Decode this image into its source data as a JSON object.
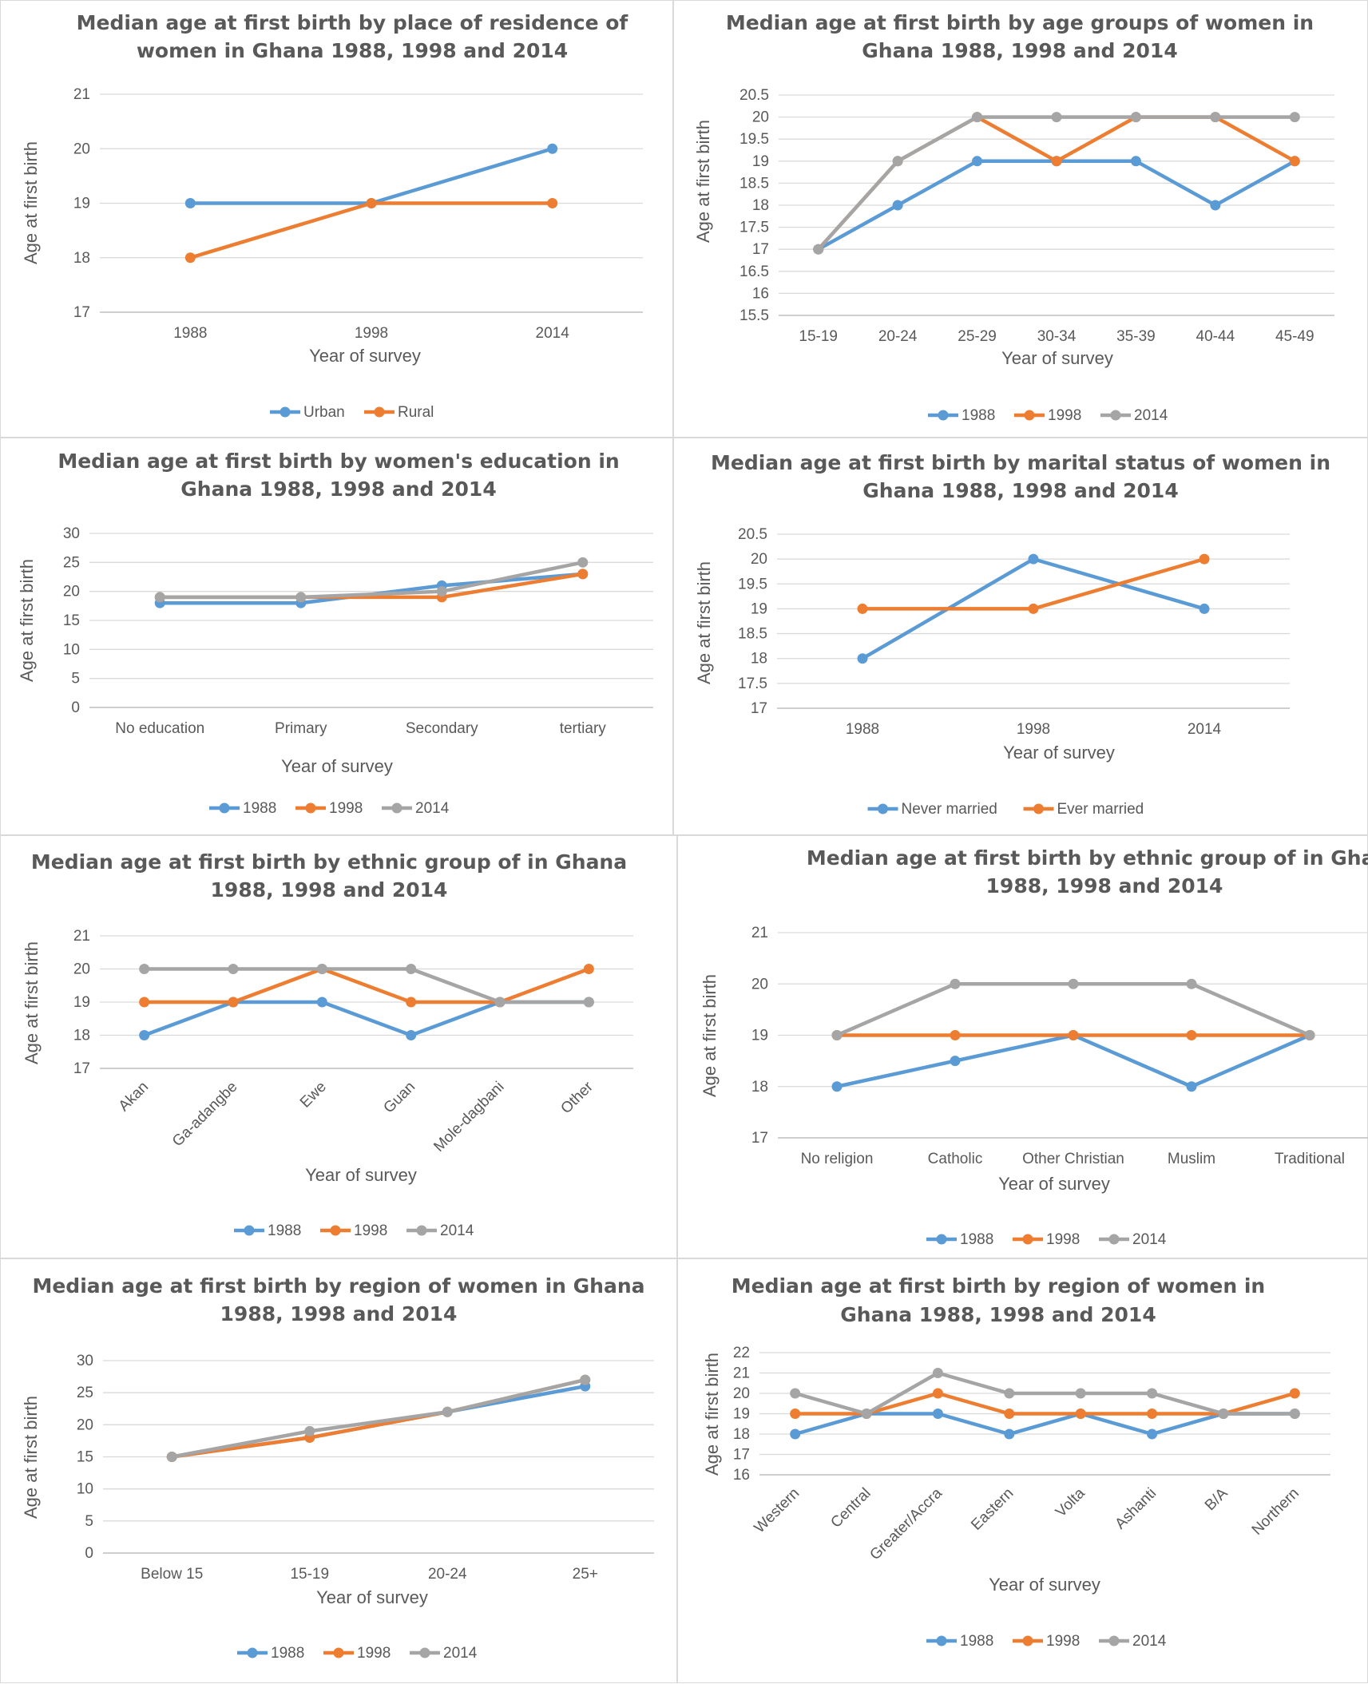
{
  "chart_data": [
    {
      "type": "line",
      "title_lines": [
        "Median age at first birth by place of residence of",
        "women in Ghana 1988, 1998 and 2014"
      ],
      "xlabel": "Year of survey",
      "ylabel": "Age at first birth",
      "categories": [
        "1988",
        "1998",
        "2014"
      ],
      "ylim": [
        17,
        21
      ],
      "yticks": [
        "17",
        "18",
        "19",
        "20",
        "21"
      ],
      "grid": true,
      "legend_position": "bottom",
      "series": [
        {
          "name": "Urban",
          "color": "#5B9BD5",
          "values": [
            19,
            19,
            20
          ]
        },
        {
          "name": "Rural",
          "color": "#ED7D31",
          "values": [
            18,
            19,
            19
          ]
        }
      ]
    },
    {
      "type": "line",
      "title_lines": [
        "Median age at first birth by age groups of women in",
        "Ghana 1988, 1998 and 2014"
      ],
      "xlabel": "Year of survey",
      "ylabel": "Age at first birth",
      "categories": [
        "15-19",
        "20-24",
        "25-29",
        "30-34",
        "35-39",
        "40-44",
        "45-49"
      ],
      "ylim": [
        15.5,
        20.5
      ],
      "yticks": [
        "15.5",
        "16",
        "16.5",
        "17",
        "17.5",
        "18",
        "18.5",
        "19",
        "19.5",
        "20",
        "20.5"
      ],
      "grid": true,
      "legend_position": "bottom",
      "series": [
        {
          "name": "1988",
          "color": "#5B9BD5",
          "values": [
            17,
            18,
            19,
            19,
            19,
            18,
            19
          ]
        },
        {
          "name": "1998",
          "color": "#ED7D31",
          "values": [
            17,
            19,
            20,
            19,
            20,
            20,
            19
          ]
        },
        {
          "name": "2014",
          "color": "#A5A5A5",
          "values": [
            17,
            19,
            20,
            20,
            20,
            20,
            20
          ]
        }
      ]
    },
    {
      "type": "line",
      "title_lines": [
        "Median age at first birth by women's education in",
        "Ghana 1988, 1998 and 2014"
      ],
      "xlabel": "Year of survey",
      "ylabel": "Age at first birth",
      "categories": [
        "No education",
        "Primary",
        "Secondary",
        "tertiary"
      ],
      "ylim": [
        0,
        30
      ],
      "yticks": [
        "0",
        "5",
        "10",
        "15",
        "20",
        "25",
        "30"
      ],
      "grid": true,
      "legend_position": "bottom",
      "series": [
        {
          "name": "1988",
          "color": "#5B9BD5",
          "values": [
            18,
            18,
            21,
            23
          ]
        },
        {
          "name": "1998",
          "color": "#ED7D31",
          "values": [
            19,
            19,
            19,
            23
          ]
        },
        {
          "name": "2014",
          "color": "#A5A5A5",
          "values": [
            19,
            19,
            20,
            25
          ]
        }
      ]
    },
    {
      "type": "line",
      "title_lines": [
        "Median age at first birth by marital status of women in",
        "Ghana 1988, 1998 and 2014"
      ],
      "xlabel": "Year of survey",
      "ylabel": "Age at first birth",
      "categories": [
        "1988",
        "1998",
        "2014"
      ],
      "ylim": [
        17,
        20.5
      ],
      "yticks": [
        "17",
        "17.5",
        "18",
        "18.5",
        "19",
        "19.5",
        "20",
        "20.5"
      ],
      "grid": true,
      "legend_position": "bottom",
      "series": [
        {
          "name": "Never married",
          "color": "#5B9BD5",
          "values": [
            18,
            20,
            19
          ]
        },
        {
          "name": "Ever married",
          "color": "#ED7D31",
          "values": [
            19,
            19,
            20
          ]
        }
      ]
    },
    {
      "type": "line",
      "title_lines": [
        "Median age at first birth by ethnic group of in Ghana",
        "1988, 1998 and 2014"
      ],
      "xlabel": "Year of survey",
      "ylabel": "Age at first birth",
      "categories": [
        "Akan",
        "Ga-adangbe",
        "Ewe",
        "Guan",
        "Mole-dagbani",
        "Other"
      ],
      "ylim": [
        17,
        21
      ],
      "yticks": [
        "17",
        "18",
        "19",
        "20",
        "21"
      ],
      "grid": true,
      "legend_position": "bottom",
      "series": [
        {
          "name": "1988",
          "color": "#5B9BD5",
          "values": [
            18,
            19,
            19,
            18,
            19,
            19
          ]
        },
        {
          "name": "1998",
          "color": "#ED7D31",
          "values": [
            19,
            19,
            20,
            19,
            19,
            20
          ]
        },
        {
          "name": "2014",
          "color": "#A5A5A5",
          "values": [
            20,
            20,
            20,
            20,
            19,
            19
          ]
        }
      ]
    },
    {
      "type": "line",
      "title_lines": [
        "Median age at first birth by ethnic group of in Ghana",
        "1988, 1998 and 2014"
      ],
      "xlabel": "Year of survey",
      "ylabel": "Age at first birth",
      "categories": [
        "No religion",
        "Catholic",
        "Other Christian",
        "Muslim",
        "Traditional"
      ],
      "ylim": [
        17,
        21
      ],
      "yticks": [
        "17",
        "18",
        "19",
        "20",
        "21"
      ],
      "grid": true,
      "legend_position": "bottom",
      "series": [
        {
          "name": "1988",
          "color": "#5B9BD5",
          "values": [
            18,
            18.5,
            19,
            18,
            19
          ]
        },
        {
          "name": "1998",
          "color": "#ED7D31",
          "values": [
            19,
            19,
            19,
            19,
            19
          ]
        },
        {
          "name": "2014",
          "color": "#A5A5A5",
          "values": [
            19,
            20,
            20,
            20,
            19
          ]
        }
      ]
    },
    {
      "type": "line",
      "title_lines": [
        "Median age at first birth by region of women in Ghana",
        "1988, 1998 and 2014"
      ],
      "xlabel": "Year of survey",
      "ylabel": "Age at first birth",
      "categories": [
        "Below 15",
        "15-19",
        "20-24",
        "25+"
      ],
      "ylim": [
        0,
        30
      ],
      "yticks": [
        "0",
        "5",
        "10",
        "15",
        "20",
        "25",
        "30"
      ],
      "grid": true,
      "legend_position": "bottom",
      "series": [
        {
          "name": "1988",
          "color": "#5B9BD5",
          "values": [
            15,
            18,
            22,
            26
          ]
        },
        {
          "name": "1998",
          "color": "#ED7D31",
          "values": [
            15,
            18,
            22,
            27
          ]
        },
        {
          "name": "2014",
          "color": "#A5A5A5",
          "values": [
            15,
            19,
            22,
            27
          ]
        }
      ]
    },
    {
      "type": "line",
      "title_lines": [
        "Median age at first birth by region of women in",
        "Ghana 1988, 1998 and 2014"
      ],
      "xlabel": "Year of survey",
      "ylabel": "Age at first birth",
      "categories": [
        "Western",
        "Central",
        "Greater/Accra",
        "Eastern",
        "Volta",
        "Ashanti",
        "B/A",
        "Northern"
      ],
      "ylim": [
        16,
        22
      ],
      "yticks": [
        "16",
        "17",
        "18",
        "19",
        "20",
        "21",
        "22"
      ],
      "grid": true,
      "legend_position": "bottom",
      "series": [
        {
          "name": "1988",
          "color": "#5B9BD5",
          "values": [
            18,
            19,
            19,
            18,
            19,
            18,
            19,
            19
          ]
        },
        {
          "name": "1998",
          "color": "#ED7D31",
          "values": [
            19,
            19,
            20,
            19,
            19,
            19,
            19,
            20
          ]
        },
        {
          "name": "2014",
          "color": "#A5A5A5",
          "values": [
            20,
            19,
            21,
            20,
            20,
            20,
            19,
            19
          ]
        }
      ]
    }
  ]
}
